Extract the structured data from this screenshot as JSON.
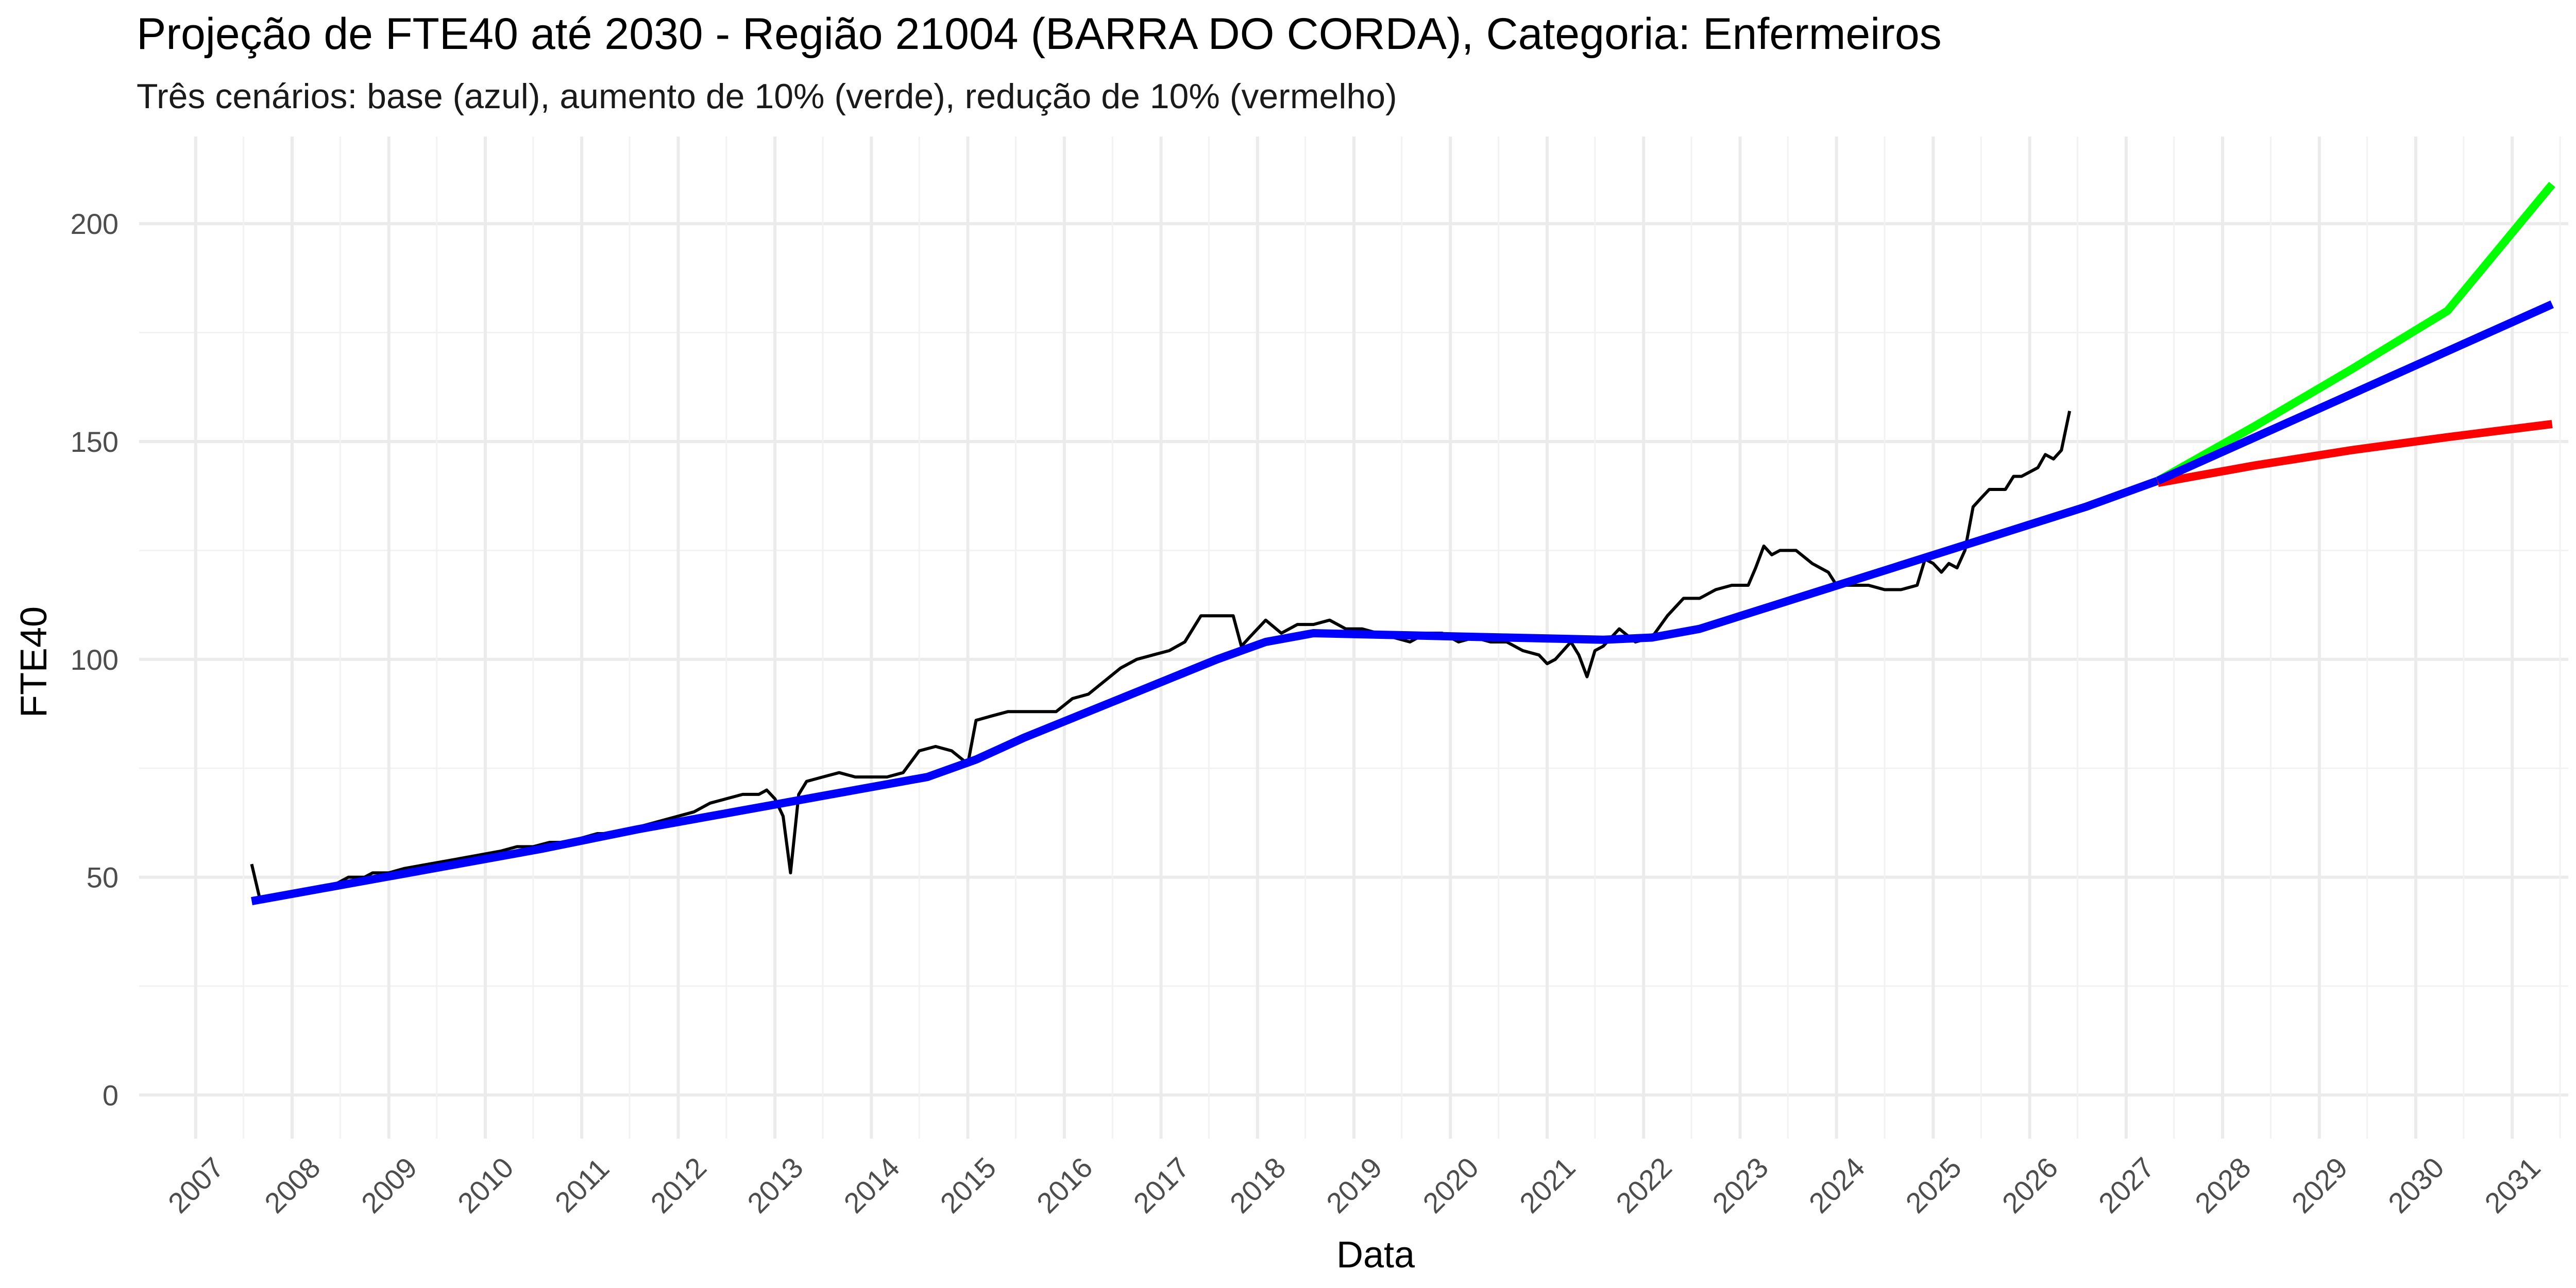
{
  "chart_data": {
    "type": "line",
    "title": "Projeção de FTE40 até 2030 - Região 21004 (BARRA DO CORDA), Categoria: Enfermeiros",
    "subtitle": "Três cenários: base (azul), aumento de 10% (verde), redução de 10% (vermelho)",
    "xlabel": "Data",
    "ylabel": "FTE40",
    "x_axis_type": "date",
    "xlim": [
      "2006-06-01",
      "2031-08-01"
    ],
    "ylim": [
      -10,
      220
    ],
    "x_ticks": [
      "2007",
      "2008",
      "2009",
      "2010",
      "2011",
      "2012",
      "2013",
      "2014",
      "2015",
      "2016",
      "2017",
      "2018",
      "2019",
      "2020",
      "2021",
      "2022",
      "2023",
      "2024",
      "2025",
      "2026",
      "2027",
      "2028",
      "2029",
      "2030",
      "2031"
    ],
    "y_ticks": [
      0,
      50,
      100,
      150,
      200
    ],
    "grid": true,
    "legend": "none",
    "series": [
      {
        "key": "observed",
        "color": "#000000",
        "points": [
          [
            "2007-08-01",
            53
          ],
          [
            "2007-09-01",
            45
          ],
          [
            "2007-10-01",
            45
          ],
          [
            "2007-11-01",
            45
          ],
          [
            "2007-12-01",
            46
          ],
          [
            "2008-01-01",
            46
          ],
          [
            "2008-02-01",
            47
          ],
          [
            "2008-03-01",
            47
          ],
          [
            "2008-04-01",
            47
          ],
          [
            "2008-05-01",
            48
          ],
          [
            "2008-06-01",
            48
          ],
          [
            "2008-07-01",
            49
          ],
          [
            "2008-08-01",
            50
          ],
          [
            "2008-09-01",
            50
          ],
          [
            "2008-10-01",
            50
          ],
          [
            "2008-11-01",
            51
          ],
          [
            "2008-12-01",
            51
          ],
          [
            "2009-01-01",
            51
          ],
          [
            "2009-03-01",
            52
          ],
          [
            "2009-06-01",
            53
          ],
          [
            "2009-09-01",
            54
          ],
          [
            "2009-12-01",
            55
          ],
          [
            "2010-03-01",
            56
          ],
          [
            "2010-05-01",
            57
          ],
          [
            "2010-07-01",
            57
          ],
          [
            "2010-09-01",
            58
          ],
          [
            "2010-11-01",
            58
          ],
          [
            "2011-01-01",
            59
          ],
          [
            "2011-03-01",
            60
          ],
          [
            "2011-05-01",
            60
          ],
          [
            "2011-07-01",
            61
          ],
          [
            "2011-09-01",
            62
          ],
          [
            "2011-11-01",
            63
          ],
          [
            "2012-01-01",
            64
          ],
          [
            "2012-03-01",
            65
          ],
          [
            "2012-05-01",
            67
          ],
          [
            "2012-07-01",
            68
          ],
          [
            "2012-09-01",
            69
          ],
          [
            "2012-11-01",
            69
          ],
          [
            "2012-12-01",
            70
          ],
          [
            "2013-01-01",
            68
          ],
          [
            "2013-02-01",
            64
          ],
          [
            "2013-03-01",
            51
          ],
          [
            "2013-04-01",
            69
          ],
          [
            "2013-05-01",
            72
          ],
          [
            "2013-07-01",
            73
          ],
          [
            "2013-09-01",
            74
          ],
          [
            "2013-11-01",
            73
          ],
          [
            "2014-01-01",
            73
          ],
          [
            "2014-03-01",
            73
          ],
          [
            "2014-05-01",
            74
          ],
          [
            "2014-07-01",
            79
          ],
          [
            "2014-09-01",
            80
          ],
          [
            "2014-11-01",
            79
          ],
          [
            "2015-01-01",
            76
          ],
          [
            "2015-02-01",
            86
          ],
          [
            "2015-04-01",
            87
          ],
          [
            "2015-06-01",
            88
          ],
          [
            "2015-08-01",
            88
          ],
          [
            "2015-10-01",
            88
          ],
          [
            "2015-12-01",
            88
          ],
          [
            "2016-02-01",
            91
          ],
          [
            "2016-04-01",
            92
          ],
          [
            "2016-06-01",
            95
          ],
          [
            "2016-08-01",
            98
          ],
          [
            "2016-10-01",
            100
          ],
          [
            "2016-12-01",
            101
          ],
          [
            "2017-02-01",
            102
          ],
          [
            "2017-04-01",
            104
          ],
          [
            "2017-06-01",
            110
          ],
          [
            "2017-08-01",
            110
          ],
          [
            "2017-10-01",
            110
          ],
          [
            "2017-11-01",
            103
          ],
          [
            "2017-12-01",
            105
          ],
          [
            "2018-02-01",
            109
          ],
          [
            "2018-04-01",
            106
          ],
          [
            "2018-06-01",
            108
          ],
          [
            "2018-08-01",
            108
          ],
          [
            "2018-10-01",
            109
          ],
          [
            "2018-12-01",
            107
          ],
          [
            "2019-02-01",
            107
          ],
          [
            "2019-04-01",
            106
          ],
          [
            "2019-06-01",
            105
          ],
          [
            "2019-08-01",
            104
          ],
          [
            "2019-10-01",
            106
          ],
          [
            "2019-12-01",
            106
          ],
          [
            "2020-02-01",
            104
          ],
          [
            "2020-04-01",
            105
          ],
          [
            "2020-06-01",
            104
          ],
          [
            "2020-08-01",
            104
          ],
          [
            "2020-10-01",
            102
          ],
          [
            "2020-12-01",
            101
          ],
          [
            "2021-01-01",
            99
          ],
          [
            "2021-02-01",
            100
          ],
          [
            "2021-04-01",
            104
          ],
          [
            "2021-05-01",
            101
          ],
          [
            "2021-06-01",
            96
          ],
          [
            "2021-07-01",
            102
          ],
          [
            "2021-08-01",
            103
          ],
          [
            "2021-10-01",
            107
          ],
          [
            "2021-12-01",
            104
          ],
          [
            "2022-02-01",
            105
          ],
          [
            "2022-04-01",
            110
          ],
          [
            "2022-06-01",
            114
          ],
          [
            "2022-08-01",
            114
          ],
          [
            "2022-10-01",
            116
          ],
          [
            "2022-12-01",
            117
          ],
          [
            "2023-02-01",
            117
          ],
          [
            "2023-03-01",
            121
          ],
          [
            "2023-04-01",
            126
          ],
          [
            "2023-05-01",
            124
          ],
          [
            "2023-06-01",
            125
          ],
          [
            "2023-08-01",
            125
          ],
          [
            "2023-10-01",
            122
          ],
          [
            "2023-12-01",
            120
          ],
          [
            "2024-01-01",
            117
          ],
          [
            "2024-03-01",
            117
          ],
          [
            "2024-05-01",
            117
          ],
          [
            "2024-07-01",
            116
          ],
          [
            "2024-09-01",
            116
          ],
          [
            "2024-11-01",
            117
          ],
          [
            "2024-12-01",
            123
          ],
          [
            "2025-01-01",
            122
          ],
          [
            "2025-02-01",
            120
          ],
          [
            "2025-03-01",
            122
          ],
          [
            "2025-04-01",
            121
          ],
          [
            "2025-05-01",
            125
          ],
          [
            "2025-06-01",
            135
          ],
          [
            "2025-07-01",
            137
          ],
          [
            "2025-08-01",
            139
          ],
          [
            "2025-09-01",
            139
          ],
          [
            "2025-10-01",
            139
          ],
          [
            "2025-11-01",
            142
          ],
          [
            "2025-12-01",
            142
          ],
          [
            "2026-01-01",
            143
          ],
          [
            "2026-02-01",
            144
          ],
          [
            "2026-03-01",
            147
          ],
          [
            "2026-04-01",
            146
          ],
          [
            "2026-05-01",
            148
          ],
          [
            "2026-06-01",
            157
          ]
        ]
      },
      {
        "key": "base",
        "color": "#0000ff",
        "points": [
          [
            "2007-08-01",
            44.5
          ],
          [
            "2008-08-01",
            48.5
          ],
          [
            "2009-08-01",
            52.5
          ],
          [
            "2010-08-01",
            56.5
          ],
          [
            "2011-08-01",
            61
          ],
          [
            "2012-08-01",
            65
          ],
          [
            "2013-08-01",
            69
          ],
          [
            "2014-08-01",
            73
          ],
          [
            "2015-02-01",
            77
          ],
          [
            "2015-08-01",
            82
          ],
          [
            "2016-08-01",
            91
          ],
          [
            "2017-08-01",
            100
          ],
          [
            "2018-02-01",
            104
          ],
          [
            "2018-08-01",
            106
          ],
          [
            "2019-08-01",
            105.5
          ],
          [
            "2020-08-01",
            105
          ],
          [
            "2021-08-01",
            104.5
          ],
          [
            "2022-02-01",
            105
          ],
          [
            "2022-08-01",
            107
          ],
          [
            "2023-08-01",
            114
          ],
          [
            "2024-08-01",
            121
          ],
          [
            "2025-08-01",
            128
          ],
          [
            "2026-08-01",
            135
          ],
          [
            "2027-05-01",
            141
          ]
        ]
      },
      {
        "key": "base_projection",
        "color": "#0000ff",
        "points": [
          [
            "2027-05-01",
            141
          ],
          [
            "2031-06-01",
            181.5
          ]
        ]
      },
      {
        "key": "increase_10",
        "color": "#00ff00",
        "points": [
          [
            "2027-05-01",
            141
          ],
          [
            "2028-05-01",
            153.5
          ],
          [
            "2029-05-01",
            166.5
          ],
          [
            "2030-05-01",
            180
          ],
          [
            "2031-06-01",
            209
          ]
        ]
      },
      {
        "key": "decrease_10",
        "color": "#ff0000",
        "points": [
          [
            "2027-05-01",
            140.5
          ],
          [
            "2028-05-01",
            144.5
          ],
          [
            "2029-05-01",
            148
          ],
          [
            "2030-05-01",
            151
          ],
          [
            "2031-06-01",
            154
          ]
        ]
      }
    ]
  }
}
